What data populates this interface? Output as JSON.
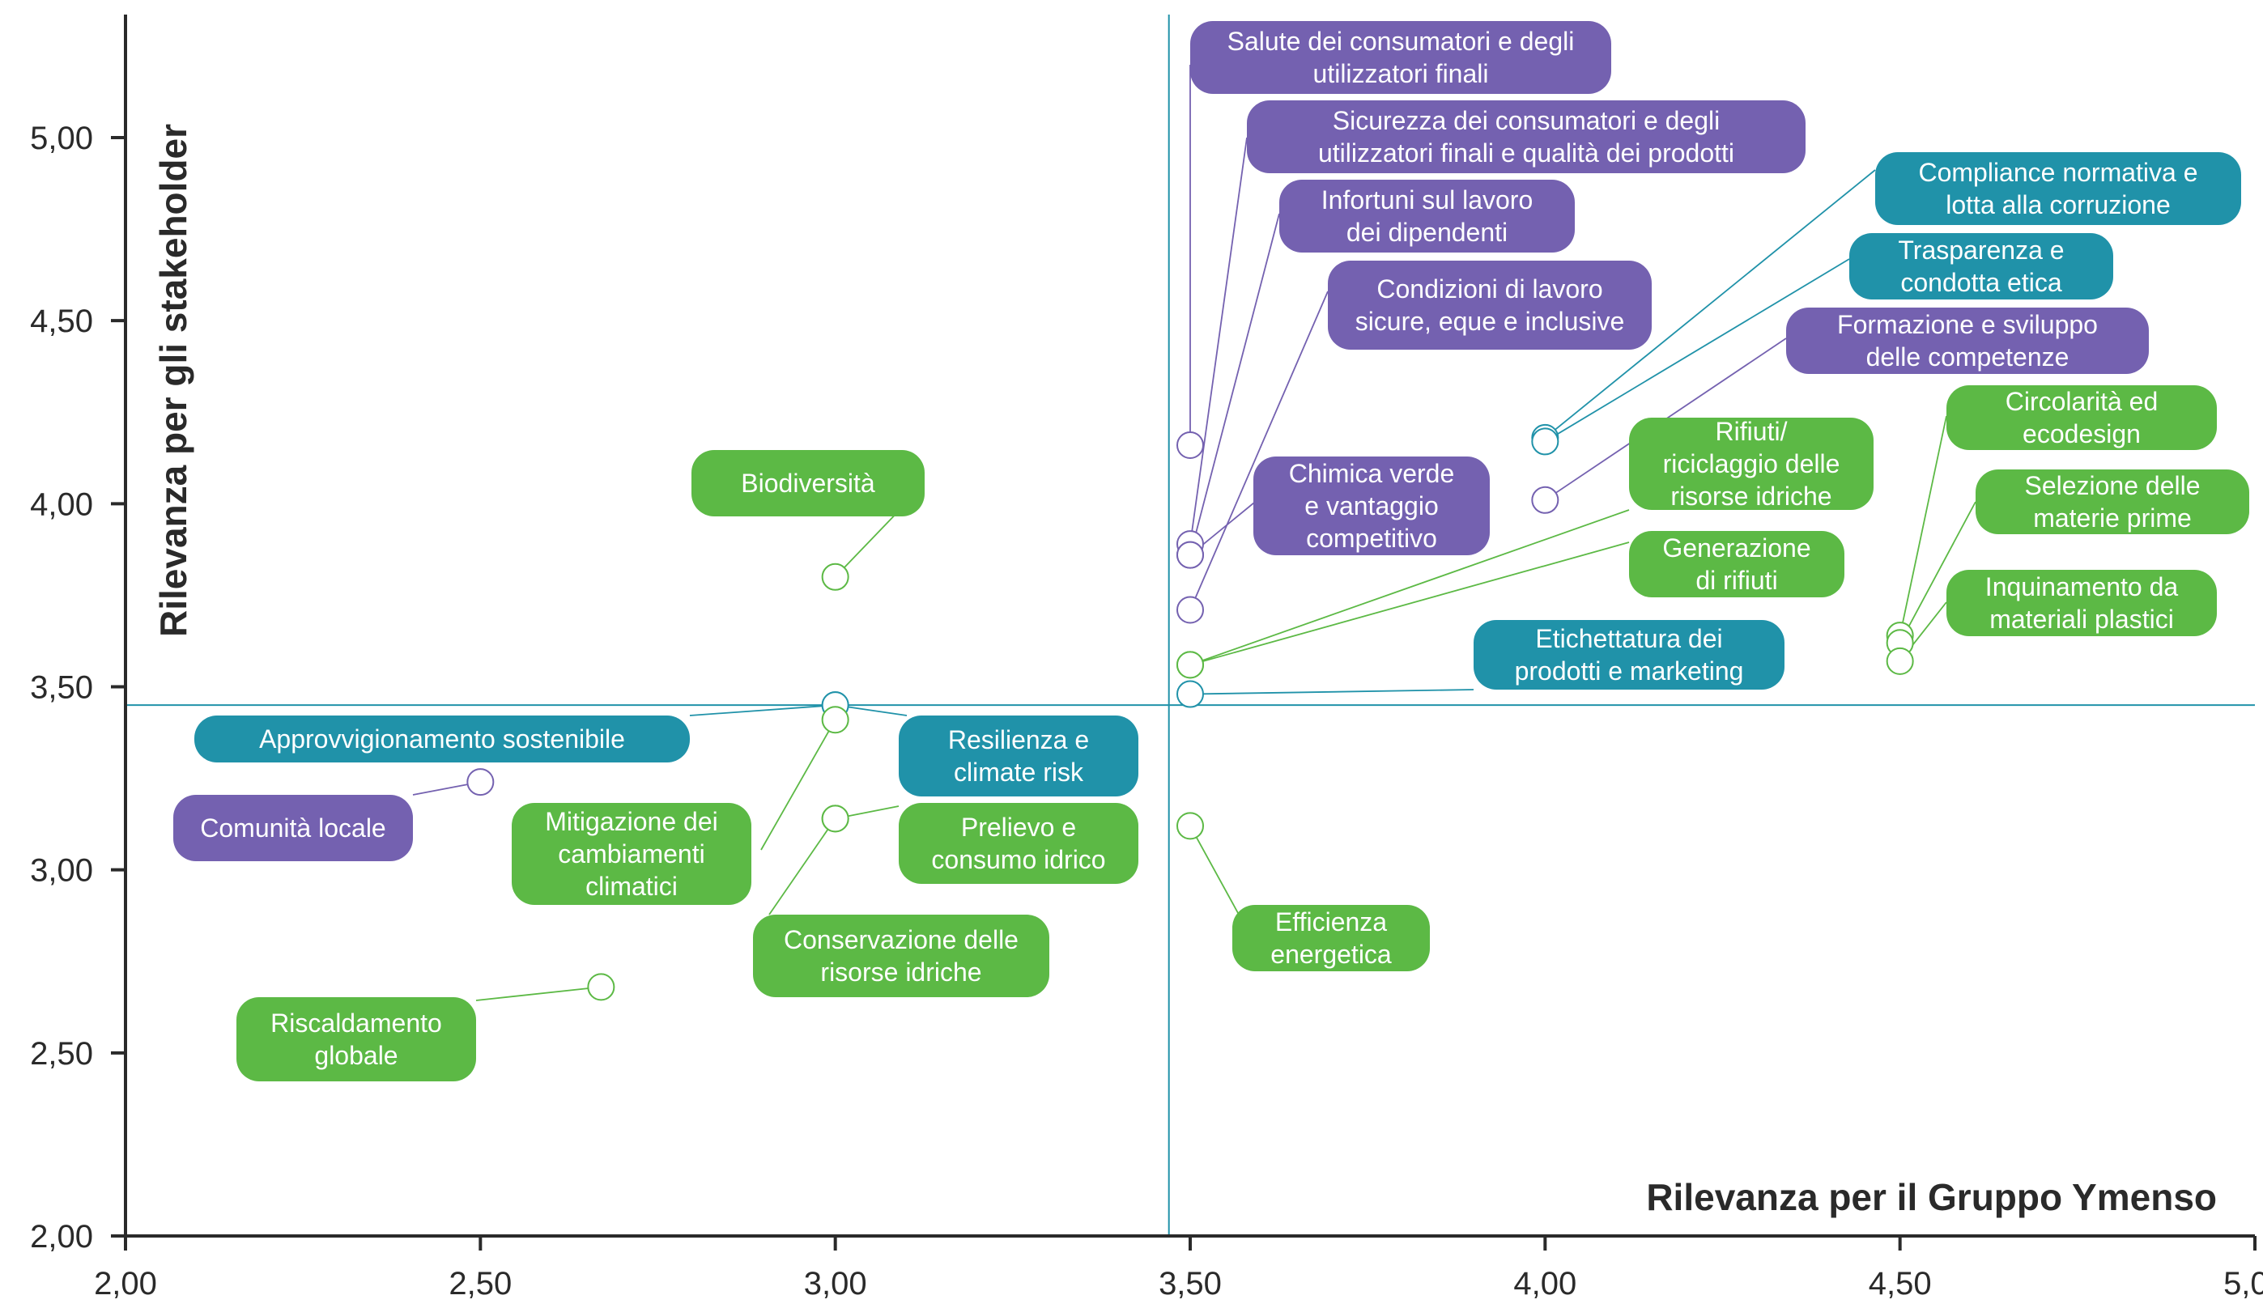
{
  "chart_data": {
    "type": "scatter",
    "xlabel": "Rilevanza per il Gruppo Ymenso",
    "ylabel": "Rilevanza per gli stakeholder",
    "xlim": [
      2.0,
      5.0
    ],
    "ylim": [
      2.0,
      5.3
    ],
    "x_ticks": [
      "2,00",
      "2,50",
      "3,00",
      "3,50",
      "4,00",
      "4,50",
      "5,00"
    ],
    "y_ticks": [
      "2,00",
      "2,50",
      "3,00",
      "3,50",
      "4,00",
      "4,50",
      "5,00"
    ],
    "threshold_x": 3.47,
    "threshold_y": 3.45,
    "grid": false,
    "legend": "none",
    "colors": {
      "purple": "#7461b0",
      "teal": "#2092a9",
      "green": "#5cb945",
      "axis": "#2a2a2a"
    },
    "points": [
      {
        "label": [
          "Salute dei consumatori e degli",
          "utilizzatori finali"
        ],
        "x": 3.5,
        "y": 4.16,
        "color": "purple"
      },
      {
        "label": [
          "Sicurezza dei consumatori e degli",
          "utilizzatori finali e qualità dei prodotti"
        ],
        "x": 3.5,
        "y": 3.89,
        "color": "purple"
      },
      {
        "label": [
          "Infortuni sul lavoro",
          "dei dipendenti"
        ],
        "x": 3.5,
        "y": 3.86,
        "color": "purple"
      },
      {
        "label": [
          "Condizioni di lavoro",
          "sicure, eque e inclusive"
        ],
        "x": 3.5,
        "y": 3.71,
        "color": "purple"
      },
      {
        "label": [
          "Chimica verde",
          "e vantaggio",
          "competitivo"
        ],
        "x": 3.5,
        "y": 3.86,
        "color": "purple"
      },
      {
        "label": [
          "Compliance normativa e",
          "lotta alla corruzione"
        ],
        "x": 4.0,
        "y": 4.18,
        "color": "teal"
      },
      {
        "label": [
          "Trasparenza e",
          "condotta etica"
        ],
        "x": 4.0,
        "y": 4.17,
        "color": "teal"
      },
      {
        "label": [
          "Formazione e sviluppo",
          "delle competenze"
        ],
        "x": 4.0,
        "y": 4.01,
        "color": "purple"
      },
      {
        "label": [
          "Rifiuti/",
          "riciclaggio delle",
          "risorse idriche"
        ],
        "x": 3.5,
        "y": 3.56,
        "color": "green"
      },
      {
        "label": [
          "Generazione",
          "di rifiuti"
        ],
        "x": 3.5,
        "y": 3.56,
        "color": "green"
      },
      {
        "label": [
          "Etichettatura dei",
          "prodotti e marketing"
        ],
        "x": 3.5,
        "y": 3.48,
        "color": "teal"
      },
      {
        "label": [
          "Circolarità ed",
          "ecodesign"
        ],
        "x": 4.5,
        "y": 3.64,
        "color": "green"
      },
      {
        "label": [
          "Selezione delle",
          "materie prime"
        ],
        "x": 4.5,
        "y": 3.62,
        "color": "green"
      },
      {
        "label": [
          "Inquinamento da",
          "materiali plastici"
        ],
        "x": 4.5,
        "y": 3.57,
        "color": "green"
      },
      {
        "label": [
          "Biodiversità"
        ],
        "x": 3.0,
        "y": 3.8,
        "color": "green"
      },
      {
        "label": [
          "Approvvigionamento sostenibile"
        ],
        "x": 3.0,
        "y": 3.45,
        "color": "teal"
      },
      {
        "label": [
          "Resilienza e",
          "climate risk"
        ],
        "x": 3.0,
        "y": 3.45,
        "color": "teal"
      },
      {
        "label": [
          "Comunità locale"
        ],
        "x": 2.5,
        "y": 3.24,
        "color": "purple"
      },
      {
        "label": [
          "Mitigazione dei",
          "cambiamenti",
          "climatici"
        ],
        "x": 3.0,
        "y": 3.41,
        "color": "green"
      },
      {
        "label": [
          "Prelievo e",
          "consumo idrico"
        ],
        "x": 3.0,
        "y": 3.14,
        "color": "green"
      },
      {
        "label": [
          "Conservazione delle",
          "risorse idriche"
        ],
        "x": 3.0,
        "y": 3.14,
        "color": "green"
      },
      {
        "label": [
          "Efficienza",
          "energetica"
        ],
        "x": 3.5,
        "y": 3.12,
        "color": "green"
      },
      {
        "label": [
          "Riscaldamento",
          "globale"
        ],
        "x": 2.67,
        "y": 2.68,
        "color": "green"
      }
    ]
  }
}
